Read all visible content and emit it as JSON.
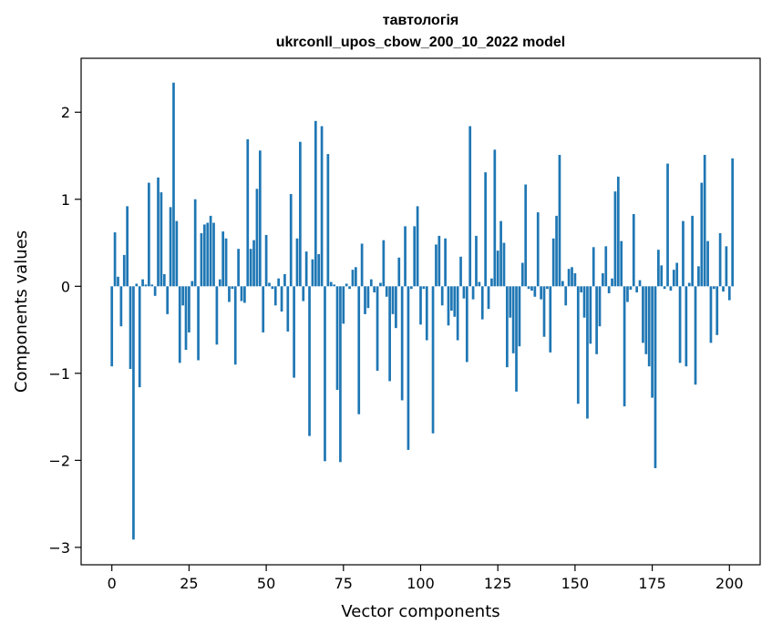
{
  "chart_data": {
    "type": "bar",
    "title": "тавтологія",
    "subtitle": "ukrconll_upos_cbow_200_10_2022 model",
    "xlabel": "Vector components",
    "ylabel": "Components values",
    "xlim": [
      -9.95,
      209.95
    ],
    "ylim": [
      -3.2,
      2.62
    ],
    "xticks": [
      0,
      25,
      50,
      75,
      100,
      125,
      150,
      175,
      200
    ],
    "yticks": [
      -3,
      -2,
      -1,
      0,
      1,
      2
    ],
    "ytick_labels": [
      "−3",
      "−2",
      "−1",
      "0",
      "1",
      "2"
    ],
    "bar_color": "#1f77b4",
    "grid": false,
    "values": [
      -0.92,
      0.62,
      0.11,
      -0.46,
      0.36,
      0.92,
      -0.95,
      -2.91,
      0.03,
      -1.16,
      0.08,
      0.02,
      1.19,
      0.02,
      -0.11,
      1.25,
      1.08,
      0.14,
      -0.32,
      0.91,
      2.34,
      0.75,
      -0.88,
      -0.22,
      -0.73,
      -0.53,
      0.06,
      1.0,
      -0.85,
      0.61,
      0.71,
      0.73,
      0.81,
      0.73,
      -0.67,
      0.08,
      0.63,
      0.55,
      -0.18,
      -0.03,
      -0.9,
      0.43,
      -0.17,
      -0.19,
      1.69,
      0.43,
      0.53,
      1.12,
      1.56,
      -0.53,
      0.59,
      0.04,
      -0.03,
      -0.22,
      0.09,
      -0.29,
      0.14,
      -0.52,
      1.06,
      -1.05,
      0.55,
      1.66,
      -0.17,
      0.4,
      -1.72,
      0.31,
      1.9,
      0.37,
      1.84,
      -2.01,
      1.52,
      0.05,
      0.02,
      -1.19,
      -2.02,
      -0.43,
      0.03,
      -0.03,
      0.19,
      0.22,
      -1.47,
      0.49,
      -0.32,
      -0.25,
      0.08,
      -0.07,
      -0.97,
      0.04,
      0.53,
      -0.12,
      -1.09,
      -0.32,
      -0.48,
      0.33,
      -1.31,
      0.69,
      -1.88,
      -0.03,
      0.69,
      0.92,
      -0.44,
      -0.03,
      -0.62,
      0.0,
      -1.69,
      0.48,
      0.58,
      -0.22,
      0.55,
      -0.45,
      -0.28,
      -0.35,
      -0.62,
      0.34,
      -0.14,
      -0.87,
      1.84,
      -0.15,
      0.58,
      0.05,
      -0.38,
      1.31,
      -0.26,
      0.09,
      1.57,
      0.41,
      0.75,
      0.5,
      -0.93,
      -0.36,
      -0.77,
      -1.21,
      -0.69,
      0.27,
      1.17,
      -0.03,
      -0.05,
      -0.12,
      0.85,
      -0.15,
      -0.58,
      -0.03,
      -0.76,
      0.55,
      0.81,
      1.51,
      0.06,
      -0.22,
      0.2,
      0.22,
      0.15,
      -1.35,
      -0.07,
      -0.36,
      -1.52,
      -0.66,
      0.45,
      -0.78,
      -0.46,
      0.15,
      0.46,
      -0.08,
      0.09,
      1.09,
      1.26,
      0.52,
      -1.38,
      -0.18,
      -0.04,
      0.83,
      -0.07,
      0.07,
      -0.65,
      -0.78,
      -0.92,
      -1.28,
      -2.09,
      0.42,
      0.24,
      -0.03,
      1.41,
      -0.05,
      0.19,
      0.27,
      -0.88,
      0.75,
      -0.92,
      0.04,
      0.81,
      -1.13,
      0.23,
      1.19,
      1.51,
      0.52,
      -0.65,
      -0.03,
      -0.56,
      0.61,
      -0.06,
      0.46,
      -0.16,
      1.47
    ]
  }
}
